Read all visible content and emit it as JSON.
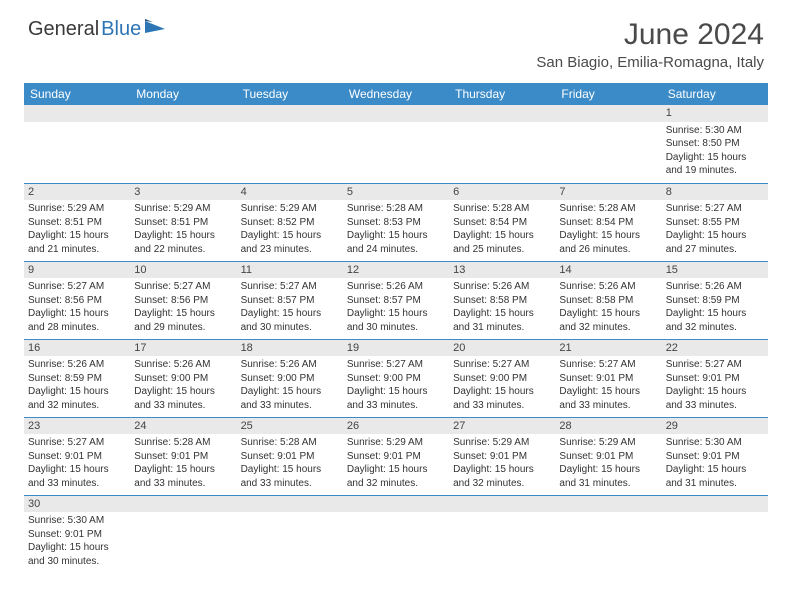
{
  "logo": {
    "part1": "General",
    "part2": "Blue"
  },
  "title": "June 2024",
  "location": "San Biagio, Emilia-Romagna, Italy",
  "header_bg": "#3b8bc9",
  "header_text": "#ffffff",
  "stripe_bg": "#e9e9e9",
  "border_color": "#3b8bc9",
  "day_headers": [
    "Sunday",
    "Monday",
    "Tuesday",
    "Wednesday",
    "Thursday",
    "Friday",
    "Saturday"
  ],
  "weeks": [
    [
      {
        "n": "",
        "sr": "",
        "ss": "",
        "dl": ""
      },
      {
        "n": "",
        "sr": "",
        "ss": "",
        "dl": ""
      },
      {
        "n": "",
        "sr": "",
        "ss": "",
        "dl": ""
      },
      {
        "n": "",
        "sr": "",
        "ss": "",
        "dl": ""
      },
      {
        "n": "",
        "sr": "",
        "ss": "",
        "dl": ""
      },
      {
        "n": "",
        "sr": "",
        "ss": "",
        "dl": ""
      },
      {
        "n": "1",
        "sr": "Sunrise: 5:30 AM",
        "ss": "Sunset: 8:50 PM",
        "dl": "Daylight: 15 hours and 19 minutes."
      }
    ],
    [
      {
        "n": "2",
        "sr": "Sunrise: 5:29 AM",
        "ss": "Sunset: 8:51 PM",
        "dl": "Daylight: 15 hours and 21 minutes."
      },
      {
        "n": "3",
        "sr": "Sunrise: 5:29 AM",
        "ss": "Sunset: 8:51 PM",
        "dl": "Daylight: 15 hours and 22 minutes."
      },
      {
        "n": "4",
        "sr": "Sunrise: 5:29 AM",
        "ss": "Sunset: 8:52 PM",
        "dl": "Daylight: 15 hours and 23 minutes."
      },
      {
        "n": "5",
        "sr": "Sunrise: 5:28 AM",
        "ss": "Sunset: 8:53 PM",
        "dl": "Daylight: 15 hours and 24 minutes."
      },
      {
        "n": "6",
        "sr": "Sunrise: 5:28 AM",
        "ss": "Sunset: 8:54 PM",
        "dl": "Daylight: 15 hours and 25 minutes."
      },
      {
        "n": "7",
        "sr": "Sunrise: 5:28 AM",
        "ss": "Sunset: 8:54 PM",
        "dl": "Daylight: 15 hours and 26 minutes."
      },
      {
        "n": "8",
        "sr": "Sunrise: 5:27 AM",
        "ss": "Sunset: 8:55 PM",
        "dl": "Daylight: 15 hours and 27 minutes."
      }
    ],
    [
      {
        "n": "9",
        "sr": "Sunrise: 5:27 AM",
        "ss": "Sunset: 8:56 PM",
        "dl": "Daylight: 15 hours and 28 minutes."
      },
      {
        "n": "10",
        "sr": "Sunrise: 5:27 AM",
        "ss": "Sunset: 8:56 PM",
        "dl": "Daylight: 15 hours and 29 minutes."
      },
      {
        "n": "11",
        "sr": "Sunrise: 5:27 AM",
        "ss": "Sunset: 8:57 PM",
        "dl": "Daylight: 15 hours and 30 minutes."
      },
      {
        "n": "12",
        "sr": "Sunrise: 5:26 AM",
        "ss": "Sunset: 8:57 PM",
        "dl": "Daylight: 15 hours and 30 minutes."
      },
      {
        "n": "13",
        "sr": "Sunrise: 5:26 AM",
        "ss": "Sunset: 8:58 PM",
        "dl": "Daylight: 15 hours and 31 minutes."
      },
      {
        "n": "14",
        "sr": "Sunrise: 5:26 AM",
        "ss": "Sunset: 8:58 PM",
        "dl": "Daylight: 15 hours and 32 minutes."
      },
      {
        "n": "15",
        "sr": "Sunrise: 5:26 AM",
        "ss": "Sunset: 8:59 PM",
        "dl": "Daylight: 15 hours and 32 minutes."
      }
    ],
    [
      {
        "n": "16",
        "sr": "Sunrise: 5:26 AM",
        "ss": "Sunset: 8:59 PM",
        "dl": "Daylight: 15 hours and 32 minutes."
      },
      {
        "n": "17",
        "sr": "Sunrise: 5:26 AM",
        "ss": "Sunset: 9:00 PM",
        "dl": "Daylight: 15 hours and 33 minutes."
      },
      {
        "n": "18",
        "sr": "Sunrise: 5:26 AM",
        "ss": "Sunset: 9:00 PM",
        "dl": "Daylight: 15 hours and 33 minutes."
      },
      {
        "n": "19",
        "sr": "Sunrise: 5:27 AM",
        "ss": "Sunset: 9:00 PM",
        "dl": "Daylight: 15 hours and 33 minutes."
      },
      {
        "n": "20",
        "sr": "Sunrise: 5:27 AM",
        "ss": "Sunset: 9:00 PM",
        "dl": "Daylight: 15 hours and 33 minutes."
      },
      {
        "n": "21",
        "sr": "Sunrise: 5:27 AM",
        "ss": "Sunset: 9:01 PM",
        "dl": "Daylight: 15 hours and 33 minutes."
      },
      {
        "n": "22",
        "sr": "Sunrise: 5:27 AM",
        "ss": "Sunset: 9:01 PM",
        "dl": "Daylight: 15 hours and 33 minutes."
      }
    ],
    [
      {
        "n": "23",
        "sr": "Sunrise: 5:27 AM",
        "ss": "Sunset: 9:01 PM",
        "dl": "Daylight: 15 hours and 33 minutes."
      },
      {
        "n": "24",
        "sr": "Sunrise: 5:28 AM",
        "ss": "Sunset: 9:01 PM",
        "dl": "Daylight: 15 hours and 33 minutes."
      },
      {
        "n": "25",
        "sr": "Sunrise: 5:28 AM",
        "ss": "Sunset: 9:01 PM",
        "dl": "Daylight: 15 hours and 33 minutes."
      },
      {
        "n": "26",
        "sr": "Sunrise: 5:29 AM",
        "ss": "Sunset: 9:01 PM",
        "dl": "Daylight: 15 hours and 32 minutes."
      },
      {
        "n": "27",
        "sr": "Sunrise: 5:29 AM",
        "ss": "Sunset: 9:01 PM",
        "dl": "Daylight: 15 hours and 32 minutes."
      },
      {
        "n": "28",
        "sr": "Sunrise: 5:29 AM",
        "ss": "Sunset: 9:01 PM",
        "dl": "Daylight: 15 hours and 31 minutes."
      },
      {
        "n": "29",
        "sr": "Sunrise: 5:30 AM",
        "ss": "Sunset: 9:01 PM",
        "dl": "Daylight: 15 hours and 31 minutes."
      }
    ],
    [
      {
        "n": "30",
        "sr": "Sunrise: 5:30 AM",
        "ss": "Sunset: 9:01 PM",
        "dl": "Daylight: 15 hours and 30 minutes."
      },
      {
        "n": "",
        "sr": "",
        "ss": "",
        "dl": ""
      },
      {
        "n": "",
        "sr": "",
        "ss": "",
        "dl": ""
      },
      {
        "n": "",
        "sr": "",
        "ss": "",
        "dl": ""
      },
      {
        "n": "",
        "sr": "",
        "ss": "",
        "dl": ""
      },
      {
        "n": "",
        "sr": "",
        "ss": "",
        "dl": ""
      },
      {
        "n": "",
        "sr": "",
        "ss": "",
        "dl": ""
      }
    ]
  ]
}
